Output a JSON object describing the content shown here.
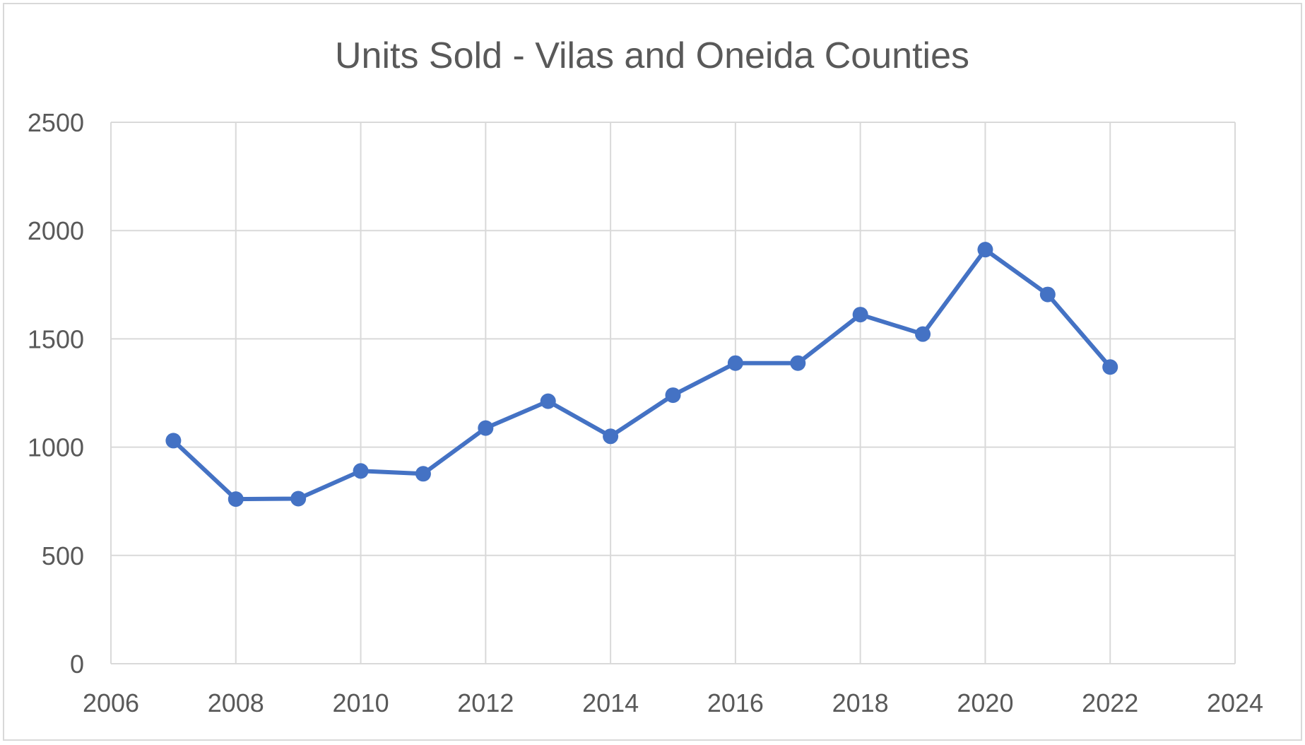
{
  "chart_data": {
    "type": "line",
    "title": "Units Sold - Vilas and Oneida Counties",
    "xlabel": "",
    "ylabel": "",
    "xlim": [
      2006,
      2024
    ],
    "ylim": [
      0,
      2500
    ],
    "x_ticks": [
      2006,
      2008,
      2010,
      2012,
      2014,
      2016,
      2018,
      2020,
      2022,
      2024
    ],
    "y_ticks": [
      0,
      500,
      1000,
      1500,
      2000,
      2500
    ],
    "grid": true,
    "legend": "none",
    "series": [
      {
        "color": "#4472c4",
        "x": [
          2007,
          2008,
          2009,
          2010,
          2011,
          2012,
          2013,
          2014,
          2015,
          2016,
          2017,
          2018,
          2019,
          2020,
          2021,
          2022
        ],
        "values": [
          1030,
          760,
          762,
          890,
          877,
          1088,
          1212,
          1050,
          1240,
          1388,
          1388,
          1612,
          1522,
          1912,
          1705,
          1370
        ]
      }
    ]
  },
  "colors": {
    "gridline": "#d9d9d9",
    "text": "#595959",
    "series": "#4472c4"
  }
}
